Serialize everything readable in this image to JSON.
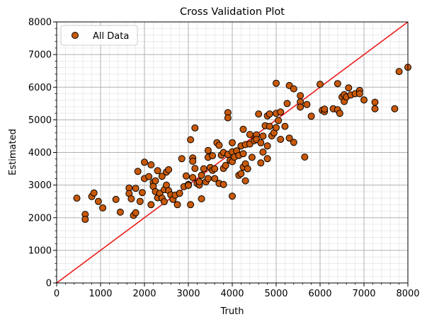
{
  "chart_data": {
    "type": "scatter",
    "title": "Cross Validation Plot",
    "xlabel": "Truth",
    "ylabel": "Estimated",
    "xlim": [
      0,
      8000
    ],
    "ylim": [
      0,
      8000
    ],
    "xticks": [
      "0",
      "1000",
      "2000",
      "3000",
      "4000",
      "5000",
      "6000",
      "7000",
      "8000"
    ],
    "yticks": [
      "0",
      "1000",
      "2000",
      "3000",
      "4000",
      "5000",
      "6000",
      "7000",
      "8000"
    ],
    "grid": true,
    "legend_position": "top-left",
    "marker_color": "#c8590a",
    "reference_line_color": "#ee1c1c",
    "reference_line": [
      [
        0,
        0
      ],
      [
        8000,
        8000
      ]
    ],
    "series": [
      {
        "name": "All Data",
        "points": [
          [
            460,
            2600
          ],
          [
            650,
            2100
          ],
          [
            650,
            1950
          ],
          [
            800,
            2650
          ],
          [
            850,
            2760
          ],
          [
            950,
            2500
          ],
          [
            1050,
            2300
          ],
          [
            1350,
            2560
          ],
          [
            1450,
            2170
          ],
          [
            1650,
            2910
          ],
          [
            1650,
            2740
          ],
          [
            1700,
            2580
          ],
          [
            1750,
            2070
          ],
          [
            1800,
            2150
          ],
          [
            1800,
            2900
          ],
          [
            1850,
            3420
          ],
          [
            1900,
            2500
          ],
          [
            1950,
            2770
          ],
          [
            2000,
            3200
          ],
          [
            2000,
            3700
          ],
          [
            2100,
            3260
          ],
          [
            2150,
            2400
          ],
          [
            2150,
            3620
          ],
          [
            2200,
            3080
          ],
          [
            2200,
            2960
          ],
          [
            2250,
            2800
          ],
          [
            2250,
            3130
          ],
          [
            2300,
            2610
          ],
          [
            2300,
            3440
          ],
          [
            2350,
            2750
          ],
          [
            2400,
            2600
          ],
          [
            2400,
            3270
          ],
          [
            2450,
            2860
          ],
          [
            2450,
            2490
          ],
          [
            2500,
            3400
          ],
          [
            2500,
            3000
          ],
          [
            2550,
            3470
          ],
          [
            2550,
            2830
          ],
          [
            2600,
            2700
          ],
          [
            2650,
            2560
          ],
          [
            2700,
            2690
          ],
          [
            2750,
            2400
          ],
          [
            2800,
            2750
          ],
          [
            2850,
            3810
          ],
          [
            2900,
            2950
          ],
          [
            2950,
            3280
          ],
          [
            3000,
            3020
          ],
          [
            3000,
            2990
          ],
          [
            3050,
            2400
          ],
          [
            3050,
            4390
          ],
          [
            3100,
            3830
          ],
          [
            3100,
            3730
          ],
          [
            3100,
            3230
          ],
          [
            3150,
            3510
          ],
          [
            3150,
            4750
          ],
          [
            3200,
            3050
          ],
          [
            3250,
            3000
          ],
          [
            3250,
            3100
          ],
          [
            3300,
            3300
          ],
          [
            3300,
            2580
          ],
          [
            3350,
            3500
          ],
          [
            3400,
            3100
          ],
          [
            3450,
            4060
          ],
          [
            3450,
            3850
          ],
          [
            3450,
            3200
          ],
          [
            3500,
            3540
          ],
          [
            3550,
            3900
          ],
          [
            3550,
            3450
          ],
          [
            3600,
            3500
          ],
          [
            3600,
            3200
          ],
          [
            3650,
            4300
          ],
          [
            3700,
            4220
          ],
          [
            3700,
            3050
          ],
          [
            3750,
            3920
          ],
          [
            3800,
            4000
          ],
          [
            3800,
            3510
          ],
          [
            3800,
            3020
          ],
          [
            3850,
            3600
          ],
          [
            3900,
            5220
          ],
          [
            3900,
            5060
          ],
          [
            3900,
            3940
          ],
          [
            3950,
            3760
          ],
          [
            4000,
            4300
          ],
          [
            4000,
            4020
          ],
          [
            4000,
            3720
          ],
          [
            4000,
            2660
          ],
          [
            4050,
            3860
          ],
          [
            4100,
            4050
          ],
          [
            4150,
            3910
          ],
          [
            4150,
            3300
          ],
          [
            4200,
            4200
          ],
          [
            4200,
            3350
          ],
          [
            4250,
            4710
          ],
          [
            4250,
            3960
          ],
          [
            4250,
            3550
          ],
          [
            4300,
            4240
          ],
          [
            4300,
            3650
          ],
          [
            4300,
            3130
          ],
          [
            4350,
            3500
          ],
          [
            4400,
            4550
          ],
          [
            4400,
            4260
          ],
          [
            4450,
            3850
          ],
          [
            4500,
            4360
          ],
          [
            4550,
            4540
          ],
          [
            4550,
            4400
          ],
          [
            4600,
            5180
          ],
          [
            4650,
            3680
          ],
          [
            4650,
            4300
          ],
          [
            4700,
            4010
          ],
          [
            4700,
            4500
          ],
          [
            4750,
            4820
          ],
          [
            4800,
            4200
          ],
          [
            4800,
            5120
          ],
          [
            4800,
            3810
          ],
          [
            4850,
            4800
          ],
          [
            4850,
            5180
          ],
          [
            4900,
            4510
          ],
          [
            4950,
            4600
          ],
          [
            5000,
            6120
          ],
          [
            5000,
            5200
          ],
          [
            5000,
            4760
          ],
          [
            5050,
            4980
          ],
          [
            5100,
            5240
          ],
          [
            5100,
            4400
          ],
          [
            5200,
            4800
          ],
          [
            5250,
            5500
          ],
          [
            5300,
            6050
          ],
          [
            5300,
            4440
          ],
          [
            5400,
            5950
          ],
          [
            5400,
            4310
          ],
          [
            5550,
            5740
          ],
          [
            5550,
            5550
          ],
          [
            5550,
            5390
          ],
          [
            5650,
            3860
          ],
          [
            5700,
            5470
          ],
          [
            5800,
            5110
          ],
          [
            6000,
            6090
          ],
          [
            6050,
            5290
          ],
          [
            6100,
            5250
          ],
          [
            6100,
            5330
          ],
          [
            6300,
            5340
          ],
          [
            6400,
            6110
          ],
          [
            6400,
            5310
          ],
          [
            6450,
            5200
          ],
          [
            6500,
            5700
          ],
          [
            6550,
            5770
          ],
          [
            6550,
            5560
          ],
          [
            6600,
            5700
          ],
          [
            6650,
            5980
          ],
          [
            6700,
            5760
          ],
          [
            6800,
            5800
          ],
          [
            6900,
            5900
          ],
          [
            6900,
            5800
          ],
          [
            7000,
            5610
          ],
          [
            7250,
            5540
          ],
          [
            7250,
            5340
          ],
          [
            7700,
            5340
          ],
          [
            7800,
            6480
          ],
          [
            8000,
            6610
          ]
        ]
      }
    ]
  }
}
